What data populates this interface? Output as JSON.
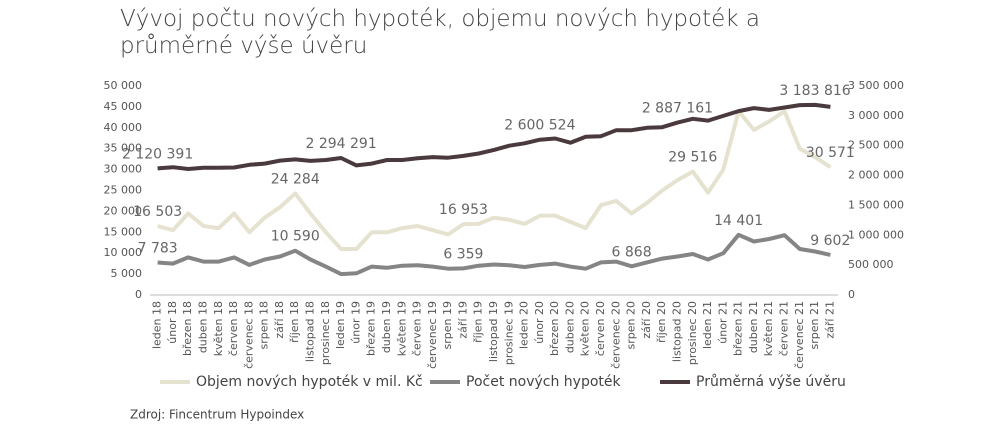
{
  "chart_data": {
    "type": "line",
    "title": "Vývoj počtu nových hypoték, objemu nových hypoték a průměrné výše úvěru",
    "source": "Zdroj: Fincentrum Hypoindex",
    "categories": [
      "leden 18",
      "únor 18",
      "březen 18",
      "duben 18",
      "květen 18",
      "červen 18",
      "červenec 18",
      "srpen 18",
      "září 18",
      "říjen 18",
      "listopad 18",
      "prosinec 18",
      "leden 19",
      "únor 19",
      "březen 19",
      "duben 19",
      "květen 19",
      "červen 19",
      "červenec 19",
      "srpen 19",
      "září 19",
      "říjen 19",
      "listopad 19",
      "prosinec 19",
      "leden 20",
      "únor 20",
      "březen 20",
      "duben 20",
      "květen 20",
      "červen 20",
      "červenec 20",
      "srpen 20",
      "září 20",
      "říjen 20",
      "listopad 20",
      "prosinec 20",
      "leden 21",
      "únor 21",
      "březen 21",
      "duben 21",
      "květen 21",
      "červen 21",
      "červenec 21",
      "srpen 21",
      "září 21"
    ],
    "ylim": [
      0,
      50000
    ],
    "yticks": [
      0,
      {
        "value": 5000,
        "label": "5 000"
      },
      {
        "value": 10000,
        "label": "10 000"
      },
      {
        "value": 15000,
        "label": "15 000"
      },
      {
        "value": 20000,
        "label": "20 000"
      },
      {
        "value": 25000,
        "label": "25 000"
      },
      {
        "value": 30000,
        "label": "30 000"
      },
      {
        "value": 35000,
        "label": "35 000"
      },
      {
        "value": 40000,
        "label": "40 000"
      },
      {
        "value": 45000,
        "label": "45 000"
      },
      {
        "value": 50000,
        "label": "50 000"
      }
    ],
    "y2lim": [
      0,
      3500000
    ],
    "y2ticks": [
      0,
      {
        "value": 500000,
        "label": "500 000"
      },
      {
        "value": 1000000,
        "label": "1 000 000"
      },
      {
        "value": 1500000,
        "label": "1 500 000"
      },
      {
        "value": 2000000,
        "label": "2 000 000"
      },
      {
        "value": 2500000,
        "label": "2 500 000"
      },
      {
        "value": 3000000,
        "label": "3 000 000"
      },
      {
        "value": 3500000,
        "label": "3 500 000"
      }
    ],
    "series": [
      {
        "name": "Objem nových hypoték v mil. Kč",
        "color": "#e6e2d0",
        "axis": "y",
        "values": [
          16503,
          15500,
          19500,
          16500,
          16000,
          19500,
          15000,
          18500,
          21000,
          24284,
          19500,
          15000,
          11000,
          11000,
          15000,
          15000,
          16000,
          16500,
          15500,
          14500,
          16953,
          17000,
          18500,
          18000,
          17000,
          19000,
          19000,
          17500,
          16000,
          21500,
          22500,
          19500,
          22000,
          25000,
          27500,
          29516,
          24500,
          30000,
          44000,
          39500,
          41500,
          44000,
          35000,
          33000,
          30571
        ],
        "value_labels": [
          "16 503",
          null,
          null,
          null,
          null,
          null,
          null,
          null,
          null,
          "24 284",
          null,
          null,
          null,
          null,
          null,
          null,
          null,
          null,
          null,
          null,
          "16 953",
          null,
          null,
          null,
          null,
          null,
          null,
          null,
          null,
          null,
          null,
          null,
          null,
          null,
          null,
          "29 516",
          null,
          null,
          null,
          null,
          null,
          null,
          null,
          null,
          "30 571"
        ]
      },
      {
        "name": "Počet nových hypoték",
        "color": "#858585",
        "axis": "y",
        "values": [
          7783,
          7500,
          9000,
          8000,
          8000,
          9000,
          7200,
          8500,
          9200,
          10590,
          8500,
          6800,
          5000,
          5200,
          6800,
          6500,
          7000,
          7100,
          6800,
          6300,
          6359,
          7000,
          7300,
          7100,
          6700,
          7200,
          7500,
          6800,
          6300,
          7800,
          8000,
          6868,
          7800,
          8700,
          9200,
          9800,
          8500,
          10000,
          14401,
          12800,
          13400,
          14300,
          11000,
          10400,
          9602
        ],
        "value_labels": [
          "7 783",
          null,
          null,
          null,
          null,
          null,
          null,
          null,
          null,
          "10 590",
          null,
          null,
          null,
          null,
          null,
          null,
          null,
          null,
          null,
          null,
          "6 359",
          null,
          null,
          null,
          null,
          null,
          null,
          null,
          null,
          null,
          null,
          "6 868",
          null,
          null,
          null,
          null,
          null,
          null,
          "14 401",
          null,
          null,
          null,
          null,
          null,
          "9 602"
        ]
      },
      {
        "name": "Průměrná výše úvěru",
        "color": "#4a3a3d",
        "axis": "y2",
        "values": [
          2120391,
          2140000,
          2110000,
          2130000,
          2130000,
          2135000,
          2180000,
          2200000,
          2250000,
          2270000,
          2245000,
          2260000,
          2294291,
          2170000,
          2200000,
          2260000,
          2260000,
          2290000,
          2310000,
          2300000,
          2330000,
          2370000,
          2430000,
          2500000,
          2540000,
          2600524,
          2620000,
          2550000,
          2650000,
          2660000,
          2760000,
          2760000,
          2800000,
          2810000,
          2887161,
          2950000,
          2920000,
          3000000,
          3080000,
          3130000,
          3100000,
          3140000,
          3180000,
          3183816,
          3150000
        ],
        "value_labels": [
          "2 120 391",
          null,
          null,
          null,
          null,
          null,
          null,
          null,
          null,
          null,
          null,
          null,
          "2 294 291",
          null,
          null,
          null,
          null,
          null,
          null,
          null,
          null,
          null,
          null,
          null,
          null,
          "2 600 524",
          null,
          null,
          null,
          null,
          null,
          null,
          null,
          null,
          "2 887 161",
          null,
          null,
          null,
          null,
          null,
          null,
          null,
          null,
          "3 183 816",
          null
        ]
      }
    ]
  }
}
